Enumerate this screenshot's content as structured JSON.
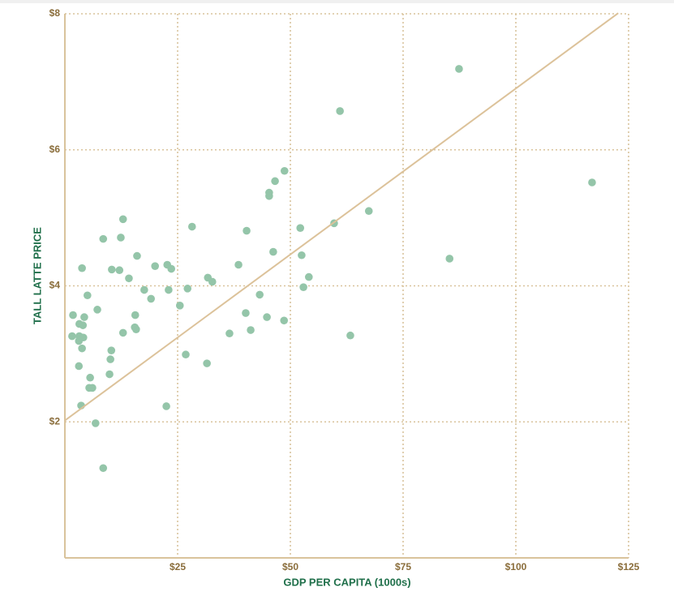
{
  "chart_data": {
    "type": "scatter",
    "x_label": "GDP PER CAPITA (1000s)",
    "y_label": "TALL LATTE PRICE",
    "xlim": [
      0,
      125
    ],
    "ylim": [
      0,
      8
    ],
    "xticks": [
      {
        "value": 25,
        "label": "$25"
      },
      {
        "value": 50,
        "label": "$50"
      },
      {
        "value": 75,
        "label": "$75"
      },
      {
        "value": 100,
        "label": "$100"
      },
      {
        "value": 125,
        "label": "$125"
      }
    ],
    "yticks": [
      {
        "value": 2,
        "label": "$2"
      },
      {
        "value": 4,
        "label": "$4"
      },
      {
        "value": 6,
        "label": "$6"
      },
      {
        "value": 8,
        "label": "$8"
      }
    ],
    "grid": true,
    "color": "#94c5a9",
    "x": [
      87.4,
      61.0,
      116.9,
      48.7,
      46.6,
      45.3,
      45.3,
      67.4,
      59.7,
      28.2,
      12.9,
      52.2,
      40.3,
      8.5,
      12.4,
      16.0,
      52.5,
      85.3,
      46.2,
      3.8,
      10.4,
      12.1,
      22.7,
      20.0,
      23.6,
      38.5,
      14.2,
      31.7,
      32.7,
      54.1,
      52.9,
      17.6,
      23.0,
      27.2,
      5.0,
      19.1,
      43.2,
      25.5,
      7.2,
      1.8,
      4.3,
      15.6,
      40.1,
      3.2,
      4.0,
      15.5,
      15.8,
      48.6,
      44.8,
      12.9,
      1.6,
      3.2,
      4.1,
      3.1,
      36.5,
      41.2,
      63.3,
      3.8,
      10.3,
      10.1,
      26.8,
      31.5,
      3.1,
      5.6,
      5.4,
      6.1,
      9.9,
      3.6,
      22.5,
      6.8,
      8.5
    ],
    "values": [
      7.19,
      6.57,
      5.52,
      5.69,
      5.54,
      5.37,
      5.32,
      5.1,
      4.92,
      4.87,
      4.98,
      4.85,
      4.81,
      4.69,
      4.71,
      4.44,
      4.45,
      4.4,
      4.5,
      4.26,
      4.24,
      4.23,
      4.31,
      4.29,
      4.25,
      4.31,
      4.11,
      4.12,
      4.06,
      4.13,
      3.98,
      3.94,
      3.94,
      3.96,
      3.86,
      3.81,
      3.87,
      3.71,
      3.65,
      3.57,
      3.54,
      3.57,
      3.6,
      3.44,
      3.42,
      3.39,
      3.36,
      3.49,
      3.54,
      3.31,
      3.26,
      3.26,
      3.24,
      3.19,
      3.3,
      3.35,
      3.27,
      3.08,
      3.05,
      2.92,
      2.99,
      2.86,
      2.82,
      2.65,
      2.5,
      2.5,
      2.7,
      2.24,
      2.23,
      1.98,
      1.32
    ],
    "trend_line": {
      "color": "#dcc29a",
      "x": [
        0,
        122.7
      ],
      "y": [
        2.02,
        8.01
      ]
    }
  }
}
